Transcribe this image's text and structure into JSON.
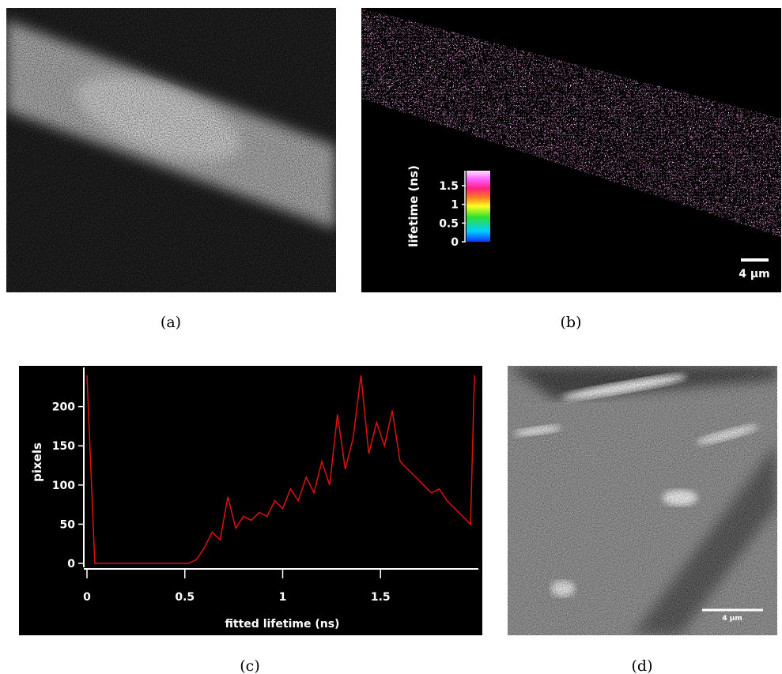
{
  "panels": {
    "a": {
      "label": "(a)"
    },
    "b": {
      "label": "(b)",
      "scale_bar": "4 μm",
      "colorbar": {
        "title": "lifetime (ns)",
        "lim": [
          0,
          1.9
        ],
        "ticks": [
          0,
          0.5,
          1,
          1.5
        ]
      }
    },
    "c": {
      "label": "(c)"
    },
    "d": {
      "label": "(d)",
      "scale_bar": "4 μm"
    }
  },
  "chart_data": {
    "type": "line",
    "ylabel": "pixels",
    "xlabel": "fitted lifetime (ns)",
    "color": "#e01010",
    "x": [
      0,
      0.04,
      0.08,
      0.12,
      0.16,
      0.2,
      0.24,
      0.28,
      0.32,
      0.36,
      0.4,
      0.44,
      0.48,
      0.52,
      0.56,
      0.6,
      0.64,
      0.68,
      0.72,
      0.76,
      0.8,
      0.84,
      0.88,
      0.92,
      0.96,
      1.0,
      1.04,
      1.08,
      1.12,
      1.16,
      1.2,
      1.24,
      1.28,
      1.32,
      1.36,
      1.4,
      1.44,
      1.48,
      1.52,
      1.56,
      1.6,
      1.64,
      1.68,
      1.72,
      1.76,
      1.8,
      1.84,
      1.88,
      1.92,
      1.96,
      1.98
    ],
    "values": [
      240,
      0,
      0,
      0,
      0,
      0,
      0,
      0,
      0,
      0,
      0,
      0,
      0,
      0,
      5,
      20,
      40,
      30,
      85,
      45,
      60,
      55,
      65,
      60,
      80,
      70,
      95,
      80,
      110,
      90,
      130,
      100,
      190,
      120,
      160,
      240,
      140,
      180,
      150,
      195,
      130,
      120,
      110,
      100,
      90,
      95,
      80,
      70,
      60,
      50,
      240
    ],
    "xlim": [
      0,
      2.0
    ],
    "ylim": [
      -5,
      250
    ],
    "xticks": [
      0,
      0.5,
      1,
      1.5
    ],
    "yticks": [
      0,
      50,
      100,
      150,
      200
    ]
  }
}
